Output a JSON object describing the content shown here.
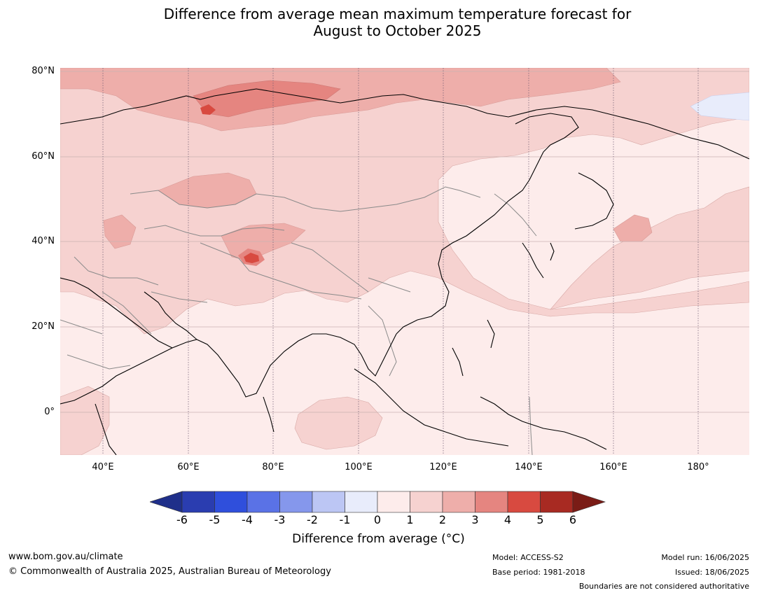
{
  "title_line1": "Difference from average mean maximum temperature forecast for",
  "title_line2": "August to October 2025",
  "lat_labels": [
    "80°N",
    "60°N",
    "40°N",
    "20°N",
    "0°"
  ],
  "lon_labels": [
    "40°E",
    "60°E",
    "80°E",
    "100°E",
    "120°E",
    "140°E",
    "160°E",
    "180°"
  ],
  "colorbar": {
    "ticks": [
      "-6",
      "-5",
      "-4",
      "-3",
      "-2",
      "-1",
      "0",
      "1",
      "2",
      "3",
      "4",
      "5",
      "6"
    ],
    "colors": [
      "#1f2f8a",
      "#2a3db0",
      "#2f4fdc",
      "#5a72e6",
      "#8597ec",
      "#bcc6f4",
      "#e8ecfb",
      "#fdeceb",
      "#f6d2d0",
      "#eeaeaa",
      "#e58580",
      "#d84a40",
      "#a82a22",
      "#7a1c16"
    ],
    "label": "Difference from average (°C)"
  },
  "footer": {
    "website": "www.bom.gov.au/climate",
    "copyright": "© Commonwealth of Australia 2025, Australian Bureau of Meteorology",
    "model": "Model: ACCESS-S2",
    "base_period": "Base period: 1981-2018",
    "model_run": "Model run: 16/06/2025",
    "issued": "Issued: 18/06/2025",
    "disclaimer": "Boundaries are not considered authoritative"
  }
}
